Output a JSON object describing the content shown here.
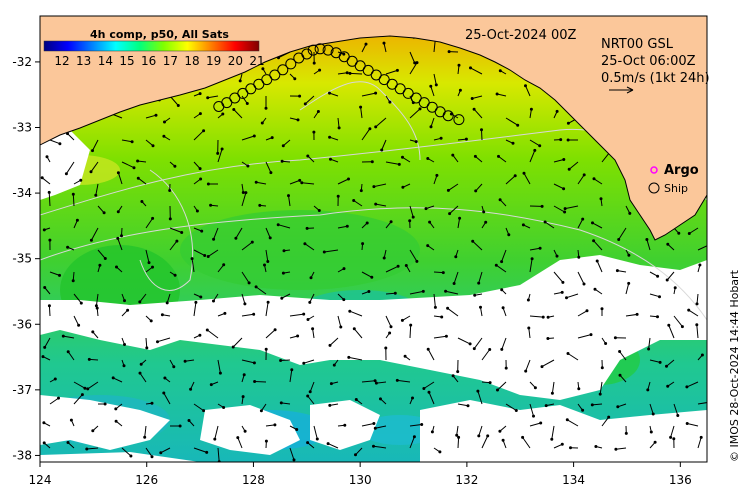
{
  "colorbar": {
    "title": "4h comp, p50, All Sats",
    "ticks": [
      "12",
      "13",
      "14",
      "15",
      "16",
      "17",
      "18",
      "19",
      "20",
      "21"
    ],
    "stops": [
      "#00007f",
      "#0000ff",
      "#007fff",
      "#00ffff",
      "#00ff7f",
      "#7fff00",
      "#ffff00",
      "#ff7f00",
      "#ff0000",
      "#7f0000"
    ]
  },
  "header": {
    "date": "25-Oct-2024 00Z",
    "product": "NRT00 GSL",
    "product_time": "25-Oct 06:00Z",
    "velocity_scale": "0.5m/s (1kt 24h)"
  },
  "legend": {
    "argo": "Argo",
    "ship": "Ship"
  },
  "axes": {
    "x_ticks": [
      "124",
      "126",
      "128",
      "130",
      "132",
      "134",
      "136"
    ],
    "y_ticks": [
      "-32",
      "-33",
      "-34",
      "-35",
      "-36",
      "-37",
      "-38"
    ],
    "lon_range": [
      124,
      136.5
    ],
    "lat_range": [
      -38.1,
      -31.3
    ]
  },
  "credit": "© IMOS 28-Oct-2024 14:44 Hobart",
  "colors": {
    "land": "#fbc79a",
    "no_data": "#ffffff",
    "arrow": "#000000",
    "ship": "#000000",
    "argo": "#ff00ff"
  },
  "ship_track": [
    [
      127.35,
      -32.68
    ],
    [
      127.5,
      -32.62
    ],
    [
      127.65,
      -32.55
    ],
    [
      127.8,
      -32.48
    ],
    [
      127.95,
      -32.41
    ],
    [
      128.1,
      -32.34
    ],
    [
      128.25,
      -32.27
    ],
    [
      128.4,
      -32.2
    ],
    [
      128.55,
      -32.12
    ],
    [
      128.7,
      -32.03
    ],
    [
      128.85,
      -31.94
    ],
    [
      129.0,
      -31.88
    ],
    [
      129.12,
      -31.82
    ],
    [
      129.25,
      -31.8
    ],
    [
      129.4,
      -31.82
    ],
    [
      129.55,
      -31.86
    ],
    [
      129.7,
      -31.92
    ],
    [
      129.85,
      -31.99
    ],
    [
      130.0,
      -32.06
    ],
    [
      130.15,
      -32.13
    ],
    [
      130.3,
      -32.2
    ],
    [
      130.45,
      -32.27
    ],
    [
      130.6,
      -32.34
    ],
    [
      130.75,
      -32.41
    ],
    [
      130.9,
      -32.48
    ],
    [
      131.05,
      -32.55
    ],
    [
      131.2,
      -32.62
    ],
    [
      131.35,
      -32.69
    ],
    [
      131.5,
      -32.76
    ],
    [
      131.65,
      -32.82
    ],
    [
      131.85,
      -32.88
    ]
  ]
}
